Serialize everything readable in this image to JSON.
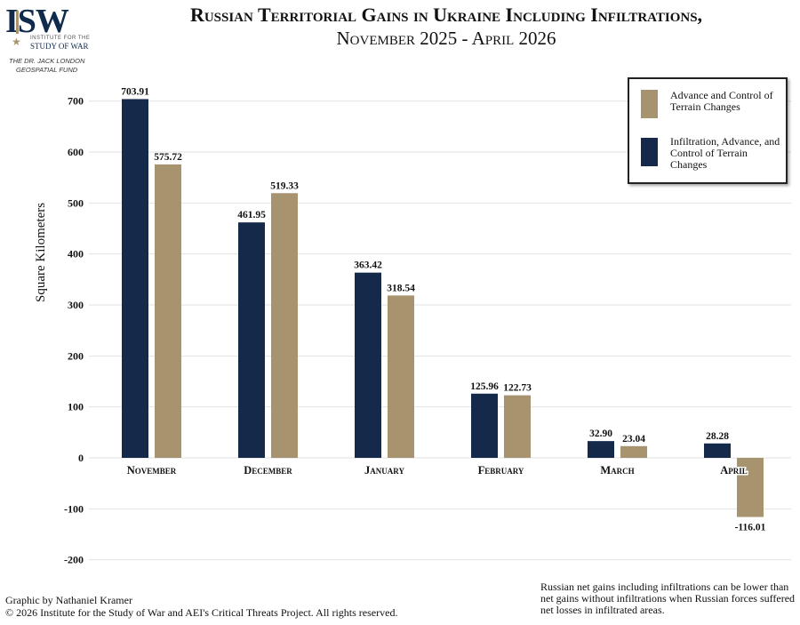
{
  "logo": {
    "text": "ISW",
    "subtitle_top": "INSTITUTE FOR THE",
    "subtitle_bottom": "STUDY OF WAR",
    "fund_line1": "THE DR. JACK LONDON",
    "fund_line2": "GEOSPATIAL FUND"
  },
  "colors": {
    "navy": "#15294b",
    "tan": "#a7946f",
    "grid": "#e2e2e2"
  },
  "chart_data": {
    "type": "bar",
    "title": "Russian Territorial Gains in Ukraine Including Infiltrations,",
    "subtitle": "November 2025 - April 2026",
    "xlabel": "",
    "ylabel": "Square Kilometers",
    "ylim": [
      -200,
      700
    ],
    "yticks": [
      -200,
      -100,
      0,
      100,
      200,
      300,
      400,
      500,
      600,
      700
    ],
    "grid": true,
    "legend_position": "top-right",
    "categories": [
      "November",
      "December",
      "January",
      "February",
      "March",
      "April"
    ],
    "series": [
      {
        "name": "Infiltration, Advance, and Control of Terrain Changes",
        "color": "#15294b",
        "values": [
          703.91,
          461.95,
          363.42,
          125.96,
          32.9,
          28.28
        ],
        "labels": [
          "703.91",
          "461.95",
          "363.42",
          "125.96",
          "32.90",
          "28.28"
        ]
      },
      {
        "name": "Advance and Control of Terrain Changes",
        "color": "#a7946f",
        "values": [
          575.72,
          519.33,
          318.54,
          122.73,
          23.04,
          -116.01
        ],
        "labels": [
          "575.72",
          "519.33",
          "318.54",
          "122.73",
          "23.04",
          "-116.01"
        ]
      }
    ]
  },
  "legend": {
    "item1": "Advance and Control of Terrain Changes",
    "item2": "Infiltration, Advance, and Control of Terrain Changes"
  },
  "footer": {
    "credit": "Graphic by Nathaniel Kramer",
    "copyright": "© 2026 Institute for the Study of War and AEI's Critical Threats Project. All rights reserved.",
    "note": "Russian net gains including infiltrations can be lower than net gains without infiltrations when Russian forces suffered net losses in infiltrated areas."
  }
}
